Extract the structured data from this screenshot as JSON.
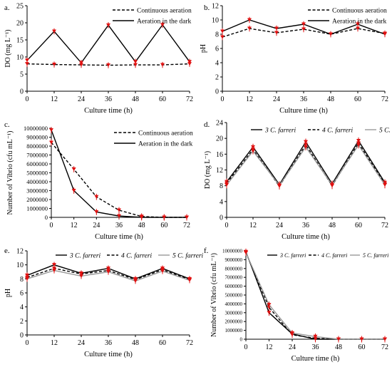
{
  "colors": {
    "marker": "#e01010",
    "dark": "#000000",
    "gray": "#999999"
  },
  "chart_data": [
    {
      "id": "a",
      "panel_label": "a.",
      "type": "line",
      "xlabel": "Culture time (h)",
      "ylabel": "DO (mg L⁻¹)",
      "x": [
        0,
        12,
        24,
        36,
        48,
        60,
        72
      ],
      "xlim": [
        0,
        72
      ],
      "ylim": [
        0,
        25
      ],
      "yticks": [
        0,
        5,
        10,
        15,
        20,
        25
      ],
      "grid": false,
      "legend_position": "top-right",
      "series": [
        {
          "name": "Continuous aeration",
          "dash": "dashed",
          "color": "#000000",
          "values": [
            8.0,
            7.8,
            7.7,
            7.6,
            7.7,
            7.7,
            8.0
          ]
        },
        {
          "name": "Aeration in the dark",
          "dash": "solid",
          "color": "#000000",
          "values": [
            9.0,
            17.5,
            8.3,
            19.3,
            8.6,
            19.4,
            8.6
          ]
        }
      ]
    },
    {
      "id": "b",
      "panel_label": "b.",
      "type": "line",
      "xlabel": "Culture time (h)",
      "ylabel": "pH",
      "x": [
        0,
        12,
        24,
        36,
        48,
        60,
        72
      ],
      "xlim": [
        0,
        72
      ],
      "ylim": [
        0,
        12
      ],
      "yticks": [
        0,
        2,
        4,
        6,
        8,
        10,
        12
      ],
      "grid": false,
      "legend_position": "top-right",
      "series": [
        {
          "name": "Continuous aeration",
          "dash": "dashed",
          "color": "#000000",
          "values": [
            7.6,
            8.8,
            8.2,
            8.7,
            8.0,
            8.8,
            8.1
          ]
        },
        {
          "name": "Aeration in the dark",
          "dash": "solid",
          "color": "#000000",
          "values": [
            8.4,
            10.0,
            8.8,
            9.4,
            8.0,
            9.4,
            8.0
          ]
        }
      ]
    },
    {
      "id": "c",
      "panel_label": "c.",
      "type": "line",
      "xlabel": "Culture time (h)",
      "ylabel": "Number of Vibrio (cfu mL⁻¹)",
      "x": [
        0,
        12,
        24,
        36,
        48,
        60,
        72
      ],
      "xlim": [
        0,
        72
      ],
      "ylim": [
        0,
        10000000
      ],
      "yticks": [
        0,
        1000000,
        2000000,
        3000000,
        4000000,
        5000000,
        6000000,
        7000000,
        8000000,
        9000000,
        10000000
      ],
      "grid": false,
      "legend_position": "top-right",
      "series": [
        {
          "name": "Continuous aeration",
          "dash": "dashed",
          "color": "#000000",
          "values": [
            8400000,
            5400000,
            2300000,
            800000,
            100000,
            0,
            0
          ]
        },
        {
          "name": "Aeration in the dark",
          "dash": "solid",
          "color": "#000000",
          "values": [
            9800000,
            3000000,
            600000,
            150000,
            0,
            0,
            0
          ]
        }
      ]
    },
    {
      "id": "d",
      "panel_label": "d.",
      "type": "line",
      "xlabel": "Culture time (h)",
      "ylabel": "DO (mg L⁻¹)",
      "x": [
        0,
        12,
        24,
        36,
        48,
        60,
        72
      ],
      "xlim": [
        0,
        72
      ],
      "ylim": [
        0,
        24
      ],
      "yticks": [
        0,
        4,
        8,
        12,
        16,
        20,
        24
      ],
      "grid": false,
      "legend_position": "top",
      "series": [
        {
          "name": "3 C. farreri",
          "dash": "solid",
          "color": "#000000",
          "values": [
            9.0,
            17.8,
            8.3,
            19.1,
            8.5,
            19.4,
            8.8
          ]
        },
        {
          "name": "4 C. farreri",
          "dash": "dashed",
          "color": "#000000",
          "values": [
            8.6,
            17.2,
            7.9,
            18.4,
            8.0,
            18.8,
            8.4
          ]
        },
        {
          "name": "5 C. farreri",
          "dash": "solid",
          "color": "#999999",
          "values": [
            8.2,
            16.8,
            8.1,
            17.8,
            8.2,
            18.3,
            8.2
          ]
        }
      ]
    },
    {
      "id": "e",
      "panel_label": "e.",
      "type": "line",
      "xlabel": "Culture time (h)",
      "ylabel": "pH",
      "x": [
        0,
        12,
        24,
        36,
        48,
        60,
        72
      ],
      "xlim": [
        0,
        72
      ],
      "ylim": [
        0,
        12
      ],
      "yticks": [
        0,
        2,
        4,
        6,
        8,
        10,
        12
      ],
      "grid": false,
      "legend_position": "top",
      "series": [
        {
          "name": "3 C. farreri",
          "dash": "solid",
          "color": "#000000",
          "values": [
            8.5,
            10.0,
            8.8,
            9.5,
            8.0,
            9.5,
            8.0
          ]
        },
        {
          "name": "4 C. farreri",
          "dash": "dashed",
          "color": "#000000",
          "values": [
            8.2,
            9.5,
            8.7,
            9.2,
            7.9,
            9.3,
            7.9
          ]
        },
        {
          "name": "5 C. farreri",
          "dash": "solid",
          "color": "#999999",
          "values": [
            8.0,
            9.2,
            8.4,
            9.0,
            7.7,
            9.1,
            7.8
          ]
        }
      ]
    },
    {
      "id": "f",
      "panel_label": "f.",
      "type": "line",
      "xlabel": "Culture time (h)",
      "ylabel": "Number of Vibrio (cfu mL⁻¹)",
      "x": [
        0,
        12,
        24,
        36,
        48,
        60,
        72
      ],
      "xlim": [
        0,
        72
      ],
      "ylim": [
        0,
        10000000
      ],
      "yticks": [
        0,
        1000000,
        2000000,
        3000000,
        4000000,
        5000000,
        6000000,
        7000000,
        8000000,
        9000000,
        10000000
      ],
      "grid": false,
      "legend_position": "top",
      "series": [
        {
          "name": "3 C. farreri",
          "dash": "solid",
          "color": "#000000",
          "values": [
            9900000,
            3000000,
            600000,
            0,
            0,
            0,
            0
          ]
        },
        {
          "name": "4 C. farreri",
          "dash": "dashed",
          "color": "#000000",
          "values": [
            9800000,
            3600000,
            500000,
            100000,
            0,
            0,
            0
          ]
        },
        {
          "name": "5 C. farreri",
          "dash": "solid",
          "color": "#999999",
          "values": [
            9800000,
            3900000,
            700000,
            300000,
            0,
            0,
            0
          ]
        }
      ]
    }
  ]
}
